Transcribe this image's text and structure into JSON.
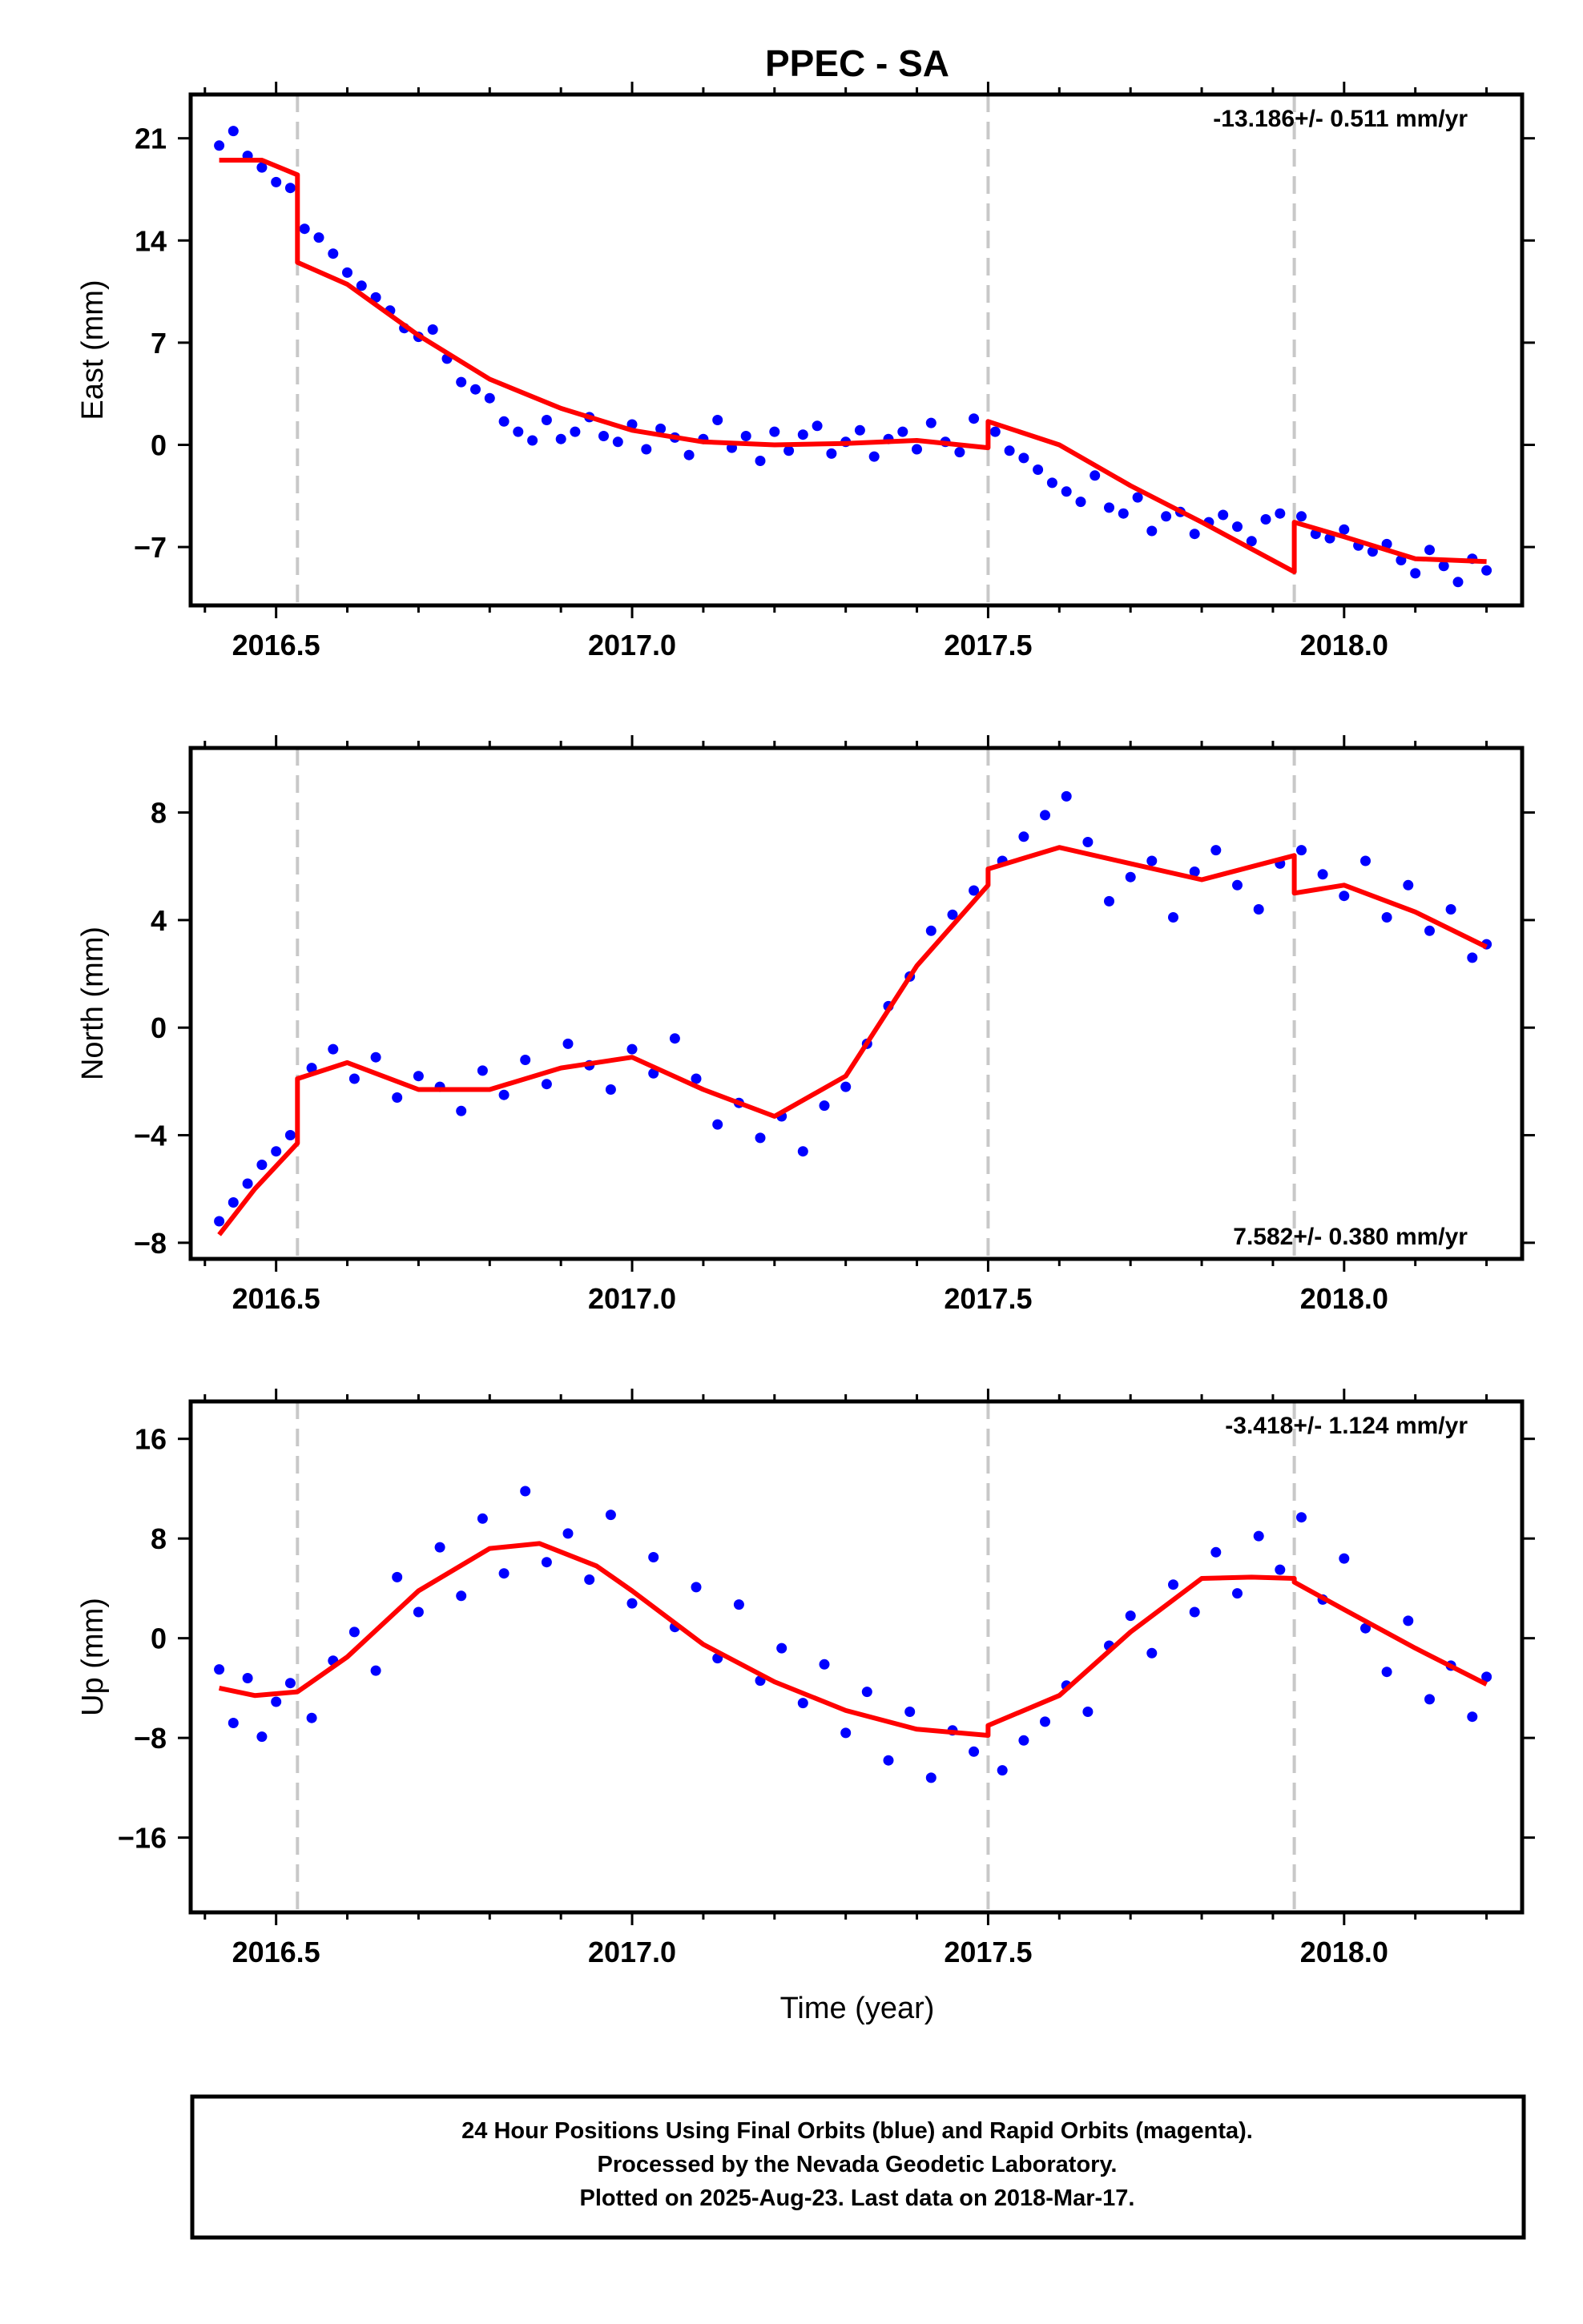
{
  "title": "PPEC - SA",
  "xlabel": "Time (year)",
  "footer": [
    "24 Hour Positions Using Final Orbits (blue) and Rapid Orbits (magenta).",
    "Processed by the Nevada Geodetic Laboratory.",
    "Plotted on 2025-Aug-23. Last data on 2018-Mar-17."
  ],
  "colors": {
    "points": "#0000ff",
    "fit": "#ff0000",
    "events": "#c8c8c8",
    "frame": "#000000"
  },
  "chart_data": [
    {
      "type": "scatter",
      "component": "East",
      "ylabel": "East (mm)",
      "rate_label": "-13.186+/- 0.511 mm/yr",
      "rate_position": "top-right",
      "xlim": [
        2016.38,
        2018.25
      ],
      "ylim": [
        -11,
        24
      ],
      "xticks": [
        2016.5,
        2017.0,
        2017.5,
        2018.0
      ],
      "xtick_labels": [
        "2016.5",
        "2017.0",
        "2017.5",
        "2018.0"
      ],
      "yticks": [
        21,
        14,
        7,
        0,
        -7
      ],
      "ytick_labels": [
        "21",
        "14",
        "7",
        "0",
        "−7"
      ],
      "event_lines": [
        2016.53,
        2017.5,
        2017.93
      ],
      "fit": {
        "x": [
          2016.42,
          2016.48,
          2016.53,
          2016.53,
          2016.6,
          2016.7,
          2016.8,
          2016.9,
          2017.0,
          2017.1,
          2017.2,
          2017.3,
          2017.4,
          2017.5,
          2017.5,
          2017.6,
          2017.7,
          2017.8,
          2017.93,
          2017.93,
          2018.0,
          2018.1,
          2018.2
        ],
        "y": [
          19.5,
          19.5,
          18.5,
          12.5,
          11.0,
          7.5,
          4.5,
          2.5,
          1.0,
          0.2,
          0.0,
          0.1,
          0.3,
          -0.2,
          1.6,
          0.0,
          -2.8,
          -5.3,
          -8.7,
          -5.3,
          -6.3,
          -7.8,
          -8.0
        ]
      },
      "series": [
        {
          "name": "Final Orbits",
          "x": [
            2016.42,
            2016.44,
            2016.46,
            2016.48,
            2016.5,
            2016.52,
            2016.54,
            2016.56,
            2016.58,
            2016.6,
            2016.62,
            2016.64,
            2016.66,
            2016.68,
            2016.7,
            2016.72,
            2016.74,
            2016.76,
            2016.78,
            2016.8,
            2016.82,
            2016.84,
            2016.86,
            2016.88,
            2016.9,
            2016.92,
            2016.94,
            2016.96,
            2016.98,
            2017.0,
            2017.02,
            2017.04,
            2017.06,
            2017.08,
            2017.1,
            2017.12,
            2017.14,
            2017.16,
            2017.18,
            2017.2,
            2017.22,
            2017.24,
            2017.26,
            2017.28,
            2017.3,
            2017.32,
            2017.34,
            2017.36,
            2017.38,
            2017.4,
            2017.42,
            2017.44,
            2017.46,
            2017.48,
            2017.51,
            2017.53,
            2017.55,
            2017.57,
            2017.59,
            2017.61,
            2017.63,
            2017.65,
            2017.67,
            2017.69,
            2017.71,
            2017.73,
            2017.75,
            2017.77,
            2017.79,
            2017.81,
            2017.83,
            2017.85,
            2017.87,
            2017.89,
            2017.91,
            2017.94,
            2017.96,
            2017.98,
            2018.0,
            2018.02,
            2018.04,
            2018.06,
            2018.08,
            2018.1,
            2018.12,
            2018.14,
            2018.16,
            2018.18,
            2018.2
          ],
          "y": [
            20.5,
            21.5,
            19.8,
            19.0,
            18.0,
            17.6,
            14.8,
            14.2,
            13.1,
            11.8,
            10.9,
            10.1,
            9.2,
            8.0,
            7.4,
            7.9,
            5.9,
            4.3,
            3.8,
            3.2,
            1.6,
            0.9,
            0.3,
            1.7,
            0.4,
            0.9,
            1.9,
            0.6,
            0.2,
            1.4,
            -0.3,
            1.1,
            0.5,
            -0.7,
            0.4,
            1.7,
            -0.2,
            0.6,
            -1.1,
            0.9,
            -0.4,
            0.7,
            1.3,
            -0.6,
            0.2,
            1.0,
            -0.8,
            0.4,
            0.9,
            -0.3,
            1.5,
            0.2,
            -0.5,
            1.8,
            0.9,
            -0.4,
            -0.9,
            -1.7,
            -2.6,
            -3.2,
            -3.9,
            -2.1,
            -4.3,
            -4.7,
            -3.6,
            -5.9,
            -4.9,
            -4.6,
            -6.1,
            -5.3,
            -4.8,
            -5.6,
            -6.6,
            -5.1,
            -4.7,
            -4.9,
            -6.1,
            -6.4,
            -5.8,
            -6.9,
            -7.3,
            -6.8,
            -7.9,
            -8.8,
            -7.2,
            -8.3,
            -9.4,
            -7.8,
            -8.6
          ]
        }
      ]
    },
    {
      "type": "scatter",
      "component": "North",
      "ylabel": "North (mm)",
      "rate_label": "7.582+/- 0.380 mm/yr",
      "rate_position": "bottom-right",
      "xlim": [
        2016.38,
        2018.25
      ],
      "ylim": [
        -8.6,
        10.4
      ],
      "xticks": [
        2016.5,
        2017.0,
        2017.5,
        2018.0
      ],
      "xtick_labels": [
        "2016.5",
        "2017.0",
        "2017.5",
        "2018.0"
      ],
      "yticks": [
        8,
        4,
        0,
        -4,
        -8
      ],
      "ytick_labels": [
        "8",
        "4",
        "0",
        "−4",
        "−8"
      ],
      "event_lines": [
        2016.53,
        2017.5,
        2017.93
      ],
      "fit": {
        "x": [
          2016.42,
          2016.47,
          2016.53,
          2016.53,
          2016.6,
          2016.7,
          2016.8,
          2016.9,
          2017.0,
          2017.1,
          2017.2,
          2017.3,
          2017.4,
          2017.5,
          2017.5,
          2017.6,
          2017.7,
          2017.8,
          2017.93,
          2017.93,
          2018.0,
          2018.1,
          2018.2
        ],
        "y": [
          -7.7,
          -6.0,
          -4.3,
          -1.9,
          -1.3,
          -2.3,
          -2.3,
          -1.5,
          -1.1,
          -2.3,
          -3.3,
          -1.8,
          2.3,
          5.3,
          5.9,
          6.7,
          6.1,
          5.5,
          6.4,
          5.0,
          5.3,
          4.3,
          3.0
        ]
      },
      "series": [
        {
          "name": "Final Orbits",
          "x": [
            2016.42,
            2016.44,
            2016.46,
            2016.48,
            2016.5,
            2016.52,
            2016.55,
            2016.58,
            2016.61,
            2016.64,
            2016.67,
            2016.7,
            2016.73,
            2016.76,
            2016.79,
            2016.82,
            2016.85,
            2016.88,
            2016.91,
            2016.94,
            2016.97,
            2017.0,
            2017.03,
            2017.06,
            2017.09,
            2017.12,
            2017.15,
            2017.18,
            2017.21,
            2017.24,
            2017.27,
            2017.3,
            2017.33,
            2017.36,
            2017.39,
            2017.42,
            2017.45,
            2017.48,
            2017.52,
            2017.55,
            2017.58,
            2017.61,
            2017.64,
            2017.67,
            2017.7,
            2017.73,
            2017.76,
            2017.79,
            2017.82,
            2017.85,
            2017.88,
            2017.91,
            2017.94,
            2017.97,
            2018.0,
            2018.03,
            2018.06,
            2018.09,
            2018.12,
            2018.15,
            2018.18,
            2018.2
          ],
          "y": [
            -7.2,
            -6.5,
            -5.8,
            -5.1,
            -4.6,
            -4.0,
            -1.5,
            -0.8,
            -1.9,
            -1.1,
            -2.6,
            -1.8,
            -2.2,
            -3.1,
            -1.6,
            -2.5,
            -1.2,
            -2.1,
            -0.6,
            -1.4,
            -2.3,
            -0.8,
            -1.7,
            -0.4,
            -1.9,
            -3.6,
            -2.8,
            -4.1,
            -3.3,
            -4.6,
            -2.9,
            -2.2,
            -0.6,
            0.8,
            1.9,
            3.6,
            4.2,
            5.1,
            6.2,
            7.1,
            7.9,
            8.6,
            6.9,
            4.7,
            5.6,
            6.2,
            4.1,
            5.8,
            6.6,
            5.3,
            4.4,
            6.1,
            6.6,
            5.7,
            4.9,
            6.2,
            4.1,
            5.3,
            3.6,
            4.4,
            2.6,
            3.1
          ]
        }
      ]
    },
    {
      "type": "scatter",
      "component": "Up",
      "ylabel": "Up (mm)",
      "rate_label": "-3.418+/- 1.124 mm/yr",
      "rate_position": "top-right",
      "xlim": [
        2016.38,
        2018.25
      ],
      "ylim": [
        -22,
        19
      ],
      "xticks": [
        2016.5,
        2017.0,
        2017.5,
        2018.0
      ],
      "xtick_labels": [
        "2016.5",
        "2017.0",
        "2017.5",
        "2018.0"
      ],
      "yticks": [
        16,
        8,
        0,
        -8,
        -16
      ],
      "ytick_labels": [
        "16",
        "8",
        "0",
        "−8",
        "−16"
      ],
      "event_lines": [
        2016.53,
        2017.5,
        2017.93
      ],
      "fit": {
        "x": [
          2016.42,
          2016.47,
          2016.53,
          2016.6,
          2016.7,
          2016.8,
          2016.87,
          2016.95,
          2017.0,
          2017.1,
          2017.2,
          2017.3,
          2017.4,
          2017.5,
          2017.5,
          2017.6,
          2017.7,
          2017.8,
          2017.87,
          2017.93,
          2017.93,
          2018.0,
          2018.1,
          2018.2
        ],
        "y": [
          -4.0,
          -4.6,
          -4.3,
          -1.5,
          3.8,
          7.2,
          7.6,
          5.8,
          3.8,
          -0.5,
          -3.5,
          -5.8,
          -7.3,
          -7.8,
          -7.0,
          -4.6,
          0.5,
          4.8,
          4.9,
          4.8,
          4.5,
          2.3,
          -0.8,
          -3.7
        ]
      },
      "series": [
        {
          "name": "Final Orbits",
          "x": [
            2016.42,
            2016.44,
            2016.46,
            2016.48,
            2016.5,
            2016.52,
            2016.55,
            2016.58,
            2016.61,
            2016.64,
            2016.67,
            2016.7,
            2016.73,
            2016.76,
            2016.79,
            2016.82,
            2016.85,
            2016.88,
            2016.91,
            2016.94,
            2016.97,
            2017.0,
            2017.03,
            2017.06,
            2017.09,
            2017.12,
            2017.15,
            2017.18,
            2017.21,
            2017.24,
            2017.27,
            2017.3,
            2017.33,
            2017.36,
            2017.39,
            2017.42,
            2017.45,
            2017.48,
            2017.52,
            2017.55,
            2017.58,
            2017.61,
            2017.64,
            2017.67,
            2017.7,
            2017.73,
            2017.76,
            2017.79,
            2017.82,
            2017.85,
            2017.88,
            2017.91,
            2017.94,
            2017.97,
            2018.0,
            2018.03,
            2018.06,
            2018.09,
            2018.12,
            2018.15,
            2018.18,
            2018.2
          ],
          "y": [
            -2.5,
            -6.8,
            -3.2,
            -7.9,
            -5.1,
            -3.6,
            -6.4,
            -1.8,
            0.5,
            -2.6,
            4.9,
            2.1,
            7.3,
            3.4,
            9.6,
            5.2,
            11.8,
            6.1,
            8.4,
            4.7,
            9.9,
            2.8,
            6.5,
            0.9,
            4.1,
            -1.6,
            2.7,
            -3.4,
            -0.8,
            -5.2,
            -2.1,
            -7.6,
            -4.3,
            -9.8,
            -5.9,
            -11.2,
            -7.4,
            -9.1,
            -10.6,
            -8.2,
            -6.7,
            -3.8,
            -5.9,
            -0.6,
            1.8,
            -1.2,
            4.3,
            2.1,
            6.9,
            3.6,
            8.2,
            5.5,
            9.7,
            3.1,
            6.4,
            0.8,
            -2.7,
            1.4,
            -4.9,
            -2.2,
            -6.3,
            -3.1
          ]
        }
      ]
    }
  ]
}
